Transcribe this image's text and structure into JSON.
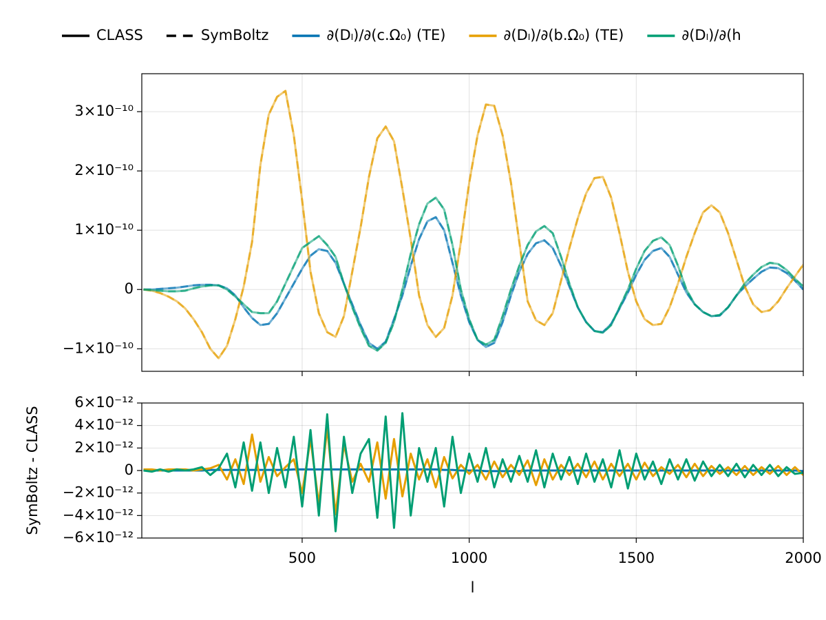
{
  "chart_data": [
    {
      "type": "line",
      "line_styles": [
        {
          "name": "CLASS",
          "dash": "solid"
        },
        {
          "name": "SymBoltz",
          "dash": "dashed"
        }
      ],
      "x": [
        25,
        50,
        75,
        100,
        125,
        150,
        175,
        200,
        225,
        250,
        275,
        300,
        325,
        350,
        375,
        400,
        425,
        450,
        475,
        500,
        525,
        550,
        575,
        600,
        625,
        650,
        675,
        700,
        725,
        750,
        775,
        800,
        825,
        850,
        875,
        900,
        925,
        950,
        975,
        1000,
        1025,
        1050,
        1075,
        1100,
        1125,
        1150,
        1175,
        1200,
        1225,
        1250,
        1275,
        1300,
        1325,
        1350,
        1375,
        1400,
        1425,
        1450,
        1475,
        1500,
        1525,
        1550,
        1575,
        1600,
        1625,
        1650,
        1675,
        1700,
        1725,
        1750,
        1775,
        1800,
        1825,
        1850,
        1875,
        1900,
        1925,
        1950,
        1975,
        2000
      ],
      "xlim": [
        20,
        2000
      ],
      "xticks": [
        500,
        1000,
        1500,
        2000
      ],
      "show_xtick_labels": false,
      "ylim": [
        -1.38e-10,
        3.64e-10
      ],
      "yticks": [
        {
          "value": -1e-10,
          "label": "−1×10⁻¹⁰"
        },
        0,
        {
          "value": 1e-10,
          "label": "1×10⁻¹⁰"
        },
        {
          "value": 2e-10,
          "label": "2×10⁻¹⁰"
        },
        {
          "value": 3e-10,
          "label": "3×10⁻¹⁰"
        }
      ],
      "grid": true,
      "series": [
        {
          "name": "∂(Dₗ)/∂(c.Ω₀) (TE)",
          "color": "#0072b2",
          "values": [
            0,
            0,
            1e-12,
            2e-12,
            3e-12,
            5e-12,
            7e-12,
            8e-12,
            8e-12,
            7e-12,
            2e-12,
            -1e-11,
            -3e-11,
            -4.8e-11,
            -6e-11,
            -5.8e-11,
            -4e-11,
            -1.5e-11,
            1e-11,
            3.5e-11,
            5.7e-11,
            6.8e-11,
            6.5e-11,
            4.5e-11,
            1e-11,
            -2.5e-11,
            -6e-11,
            -9e-11,
            -1e-10,
            -8.8e-11,
            -5e-11,
            -1e-11,
            4e-11,
            8.5e-11,
            1.15e-10,
            1.22e-10,
            1e-10,
            4.5e-11,
            -1e-11,
            -5.5e-11,
            -8.5e-11,
            -9.7e-11,
            -9e-11,
            -5.5e-11,
            -1e-11,
            3e-11,
            6e-11,
            7.8e-11,
            8.3e-11,
            7e-11,
            4e-11,
            5e-12,
            -3e-11,
            -5.5e-11,
            -7e-11,
            -7.2e-11,
            -5.8e-11,
            -3.2e-11,
            -5e-12,
            2.5e-11,
            5e-11,
            6.5e-11,
            7e-11,
            5.5e-11,
            2.5e-11,
            -5e-12,
            -2.5e-11,
            -3.8e-11,
            -4.5e-11,
            -4.4e-11,
            -3e-11,
            -1e-11,
            5e-12,
            1.8e-11,
            3e-11,
            3.7e-11,
            3.6e-11,
            2.8e-11,
            1.5e-11,
            0
          ]
        },
        {
          "name": "∂(Dₗ)/∂(b.Ω₀) (TE)",
          "color": "#e69f00",
          "values": [
            0,
            -2e-12,
            -6e-12,
            -1.2e-11,
            -2e-11,
            -3.2e-11,
            -5e-11,
            -7.2e-11,
            -1e-10,
            -1.16e-10,
            -9.5e-11,
            -5e-11,
            5e-12,
            8e-11,
            2.1e-10,
            2.95e-10,
            3.25e-10,
            3.35e-10,
            2.6e-10,
            1.5e-10,
            3e-11,
            -4e-11,
            -7.2e-11,
            -8e-11,
            -4.5e-11,
            3e-11,
            1.05e-10,
            1.9e-10,
            2.55e-10,
            2.75e-10,
            2.5e-10,
            1.7e-10,
            8.5e-11,
            -1e-11,
            -6e-11,
            -8e-11,
            -6.5e-11,
            -1e-11,
            8e-11,
            1.8e-10,
            2.6e-10,
            3.12e-10,
            3.1e-10,
            2.6e-10,
            1.8e-10,
            8e-11,
            -2e-11,
            -5.2e-11,
            -6e-11,
            -4e-11,
            1.5e-11,
            7e-11,
            1.2e-10,
            1.62e-10,
            1.88e-10,
            1.9e-10,
            1.55e-10,
            9.5e-11,
            3e-11,
            -2e-11,
            -5e-11,
            -6e-11,
            -5.8e-11,
            -3e-11,
            1e-11,
            5.5e-11,
            9.5e-11,
            1.3e-10,
            1.42e-10,
            1.3e-10,
            9.5e-11,
            5e-11,
            5e-12,
            -2.5e-11,
            -3.8e-11,
            -3.5e-11,
            -2e-11,
            2e-12,
            2.2e-11,
            4.2e-11
          ]
        },
        {
          "name": "∂(Dₗ)/∂(h",
          "color": "#009e73",
          "values": [
            0,
            -1e-12,
            -2e-12,
            -3e-12,
            -3e-12,
            -2e-12,
            2e-12,
            5e-12,
            7e-12,
            7e-12,
            0,
            -1.2e-11,
            -2.5e-11,
            -3.8e-11,
            -4e-11,
            -4e-11,
            -2e-11,
            1e-11,
            4e-11,
            7e-11,
            8e-11,
            9e-11,
            7.5e-11,
            5.5e-11,
            1e-11,
            -3e-11,
            -6.5e-11,
            -9.5e-11,
            -1.03e-10,
            -9e-11,
            -5.5e-11,
            0,
            6e-11,
            1.1e-10,
            1.45e-10,
            1.55e-10,
            1.35e-10,
            7.5e-11,
            0,
            -5e-11,
            -8.5e-11,
            -9.3e-11,
            -8.5e-11,
            -4.5e-11,
            0,
            4e-11,
            7.5e-11,
            9.8e-11,
            1.07e-10,
            9.5e-11,
            5.5e-11,
            1e-11,
            -3e-11,
            -5.5e-11,
            -7e-11,
            -7.3e-11,
            -6e-11,
            -3e-11,
            0,
            3.5e-11,
            6.5e-11,
            8.2e-11,
            8.8e-11,
            7.5e-11,
            4e-11,
            0,
            -2.5e-11,
            -3.8e-11,
            -4.5e-11,
            -4.3e-11,
            -3e-11,
            -1e-11,
            1e-11,
            2.5e-11,
            3.8e-11,
            4.5e-11,
            4.3e-11,
            3.3e-11,
            1.8e-11,
            5e-12
          ]
        }
      ]
    },
    {
      "type": "line",
      "x": [
        25,
        50,
        75,
        100,
        125,
        150,
        175,
        200,
        225,
        250,
        275,
        300,
        325,
        350,
        375,
        400,
        425,
        450,
        475,
        500,
        525,
        550,
        575,
        600,
        625,
        650,
        675,
        700,
        725,
        750,
        775,
        800,
        825,
        850,
        875,
        900,
        925,
        950,
        975,
        1000,
        1025,
        1050,
        1075,
        1100,
        1125,
        1150,
        1175,
        1200,
        1225,
        1250,
        1275,
        1300,
        1325,
        1350,
        1375,
        1400,
        1425,
        1450,
        1475,
        1500,
        1525,
        1550,
        1575,
        1600,
        1625,
        1650,
        1675,
        1700,
        1725,
        1750,
        1775,
        1800,
        1825,
        1850,
        1875,
        1900,
        1925,
        1950,
        1975,
        2000
      ],
      "xlim": [
        20,
        2000
      ],
      "xticks": [
        500,
        1000,
        1500,
        2000
      ],
      "show_xtick_labels": true,
      "xlabel": "l",
      "ylabel": "SymBoltz - CLASS",
      "ylim": [
        -6e-12,
        6e-12
      ],
      "yticks": [
        {
          "value": -6e-12,
          "label": "−6×10⁻¹²"
        },
        {
          "value": -4e-12,
          "label": "−4×10⁻¹²"
        },
        {
          "value": -2e-12,
          "label": "−2×10⁻¹²"
        },
        0,
        {
          "value": 2e-12,
          "label": "2×10⁻¹²"
        },
        {
          "value": 4e-12,
          "label": "4×10⁻¹²"
        },
        {
          "value": 6e-12,
          "label": "6×10⁻¹²"
        }
      ],
      "grid": true,
      "series": [
        {
          "name": "∂(Dₗ)/∂(c.Ω₀) (TE)",
          "color": "#0072b2",
          "values": [
            0,
            0,
            0,
            0,
            0,
            0,
            0,
            0,
            5e-14,
            5e-14,
            5e-14,
            5e-14,
            5e-14,
            5e-14,
            5e-14,
            5e-14,
            5e-14,
            5e-14,
            1e-13,
            1e-13,
            1e-13,
            1e-13,
            1e-13,
            1e-13,
            1e-13,
            1e-13,
            1e-13,
            1e-13,
            1e-13,
            1e-13,
            1e-13,
            1e-13,
            1e-13,
            1e-13,
            1e-13,
            1e-13,
            5e-14,
            5e-14,
            0,
            0,
            0,
            -5e-14,
            -5e-14,
            -5e-14,
            -5e-14,
            -5e-14,
            0,
            0,
            0,
            0,
            0,
            0,
            0,
            0,
            0,
            0,
            0,
            0,
            0,
            0,
            0,
            0,
            0,
            0,
            0,
            0,
            0,
            0,
            0,
            0,
            0,
            0,
            0,
            0,
            0,
            0,
            0,
            0,
            0,
            -5e-14
          ]
        },
        {
          "name": "∂(Dₗ)/∂(b.Ω₀) (TE)",
          "color": "#e69f00",
          "values": [
            1e-13,
            1e-13,
            0,
            1e-13,
            1e-13,
            1e-13,
            0,
            1e-13,
            2e-13,
            5e-13,
            -8e-13,
            1e-12,
            -1.2e-12,
            3.2e-12,
            -1e-12,
            1.2e-12,
            -5e-13,
            3e-13,
            1e-12,
            -2e-12,
            2.8e-12,
            -3e-12,
            3.8e-12,
            -3.9e-12,
            2.3e-12,
            -1e-12,
            6e-13,
            -1e-12,
            2.5e-12,
            -2.5e-12,
            2.8e-12,
            -2.3e-12,
            1.5e-12,
            -8e-13,
            1e-12,
            -1.5e-12,
            1.2e-12,
            -7e-13,
            5e-13,
            -3e-13,
            5e-13,
            -8e-13,
            8e-13,
            -6e-13,
            5e-13,
            -4e-13,
            9e-13,
            -1.3e-12,
            1e-12,
            -8e-13,
            5e-13,
            -4e-13,
            6e-13,
            -6e-13,
            8e-13,
            -8e-13,
            6e-13,
            -5e-13,
            6e-13,
            -8e-13,
            7e-13,
            -5e-13,
            3e-13,
            -3e-13,
            5e-13,
            -6e-13,
            6e-13,
            -5e-13,
            4e-13,
            -3e-13,
            3e-13,
            -4e-13,
            4e-13,
            -4e-13,
            3e-13,
            -3e-13,
            4e-13,
            -4e-13,
            3e-13,
            -4e-13
          ]
        },
        {
          "name": "∂(Dₗ)/∂(h",
          "color": "#009e73",
          "values": [
            0,
            -1e-13,
            1e-13,
            -1e-13,
            1e-13,
            0,
            1e-13,
            3e-13,
            -4e-13,
            2e-13,
            1.5e-12,
            -1.5e-12,
            2.5e-12,
            -1.8e-12,
            2.5e-12,
            -2e-12,
            2e-12,
            -1.5e-12,
            3e-12,
            -3.2e-12,
            3.6e-12,
            -4e-12,
            5e-12,
            -5.4e-12,
            3e-12,
            -2e-12,
            1.5e-12,
            2.8e-12,
            -4.2e-12,
            4.8e-12,
            -5.1e-12,
            5.1e-12,
            -4e-12,
            2e-12,
            -1e-12,
            2e-12,
            -3.2e-12,
            3e-12,
            -2e-12,
            1.5e-12,
            -1e-12,
            2e-12,
            -1.5e-12,
            1e-12,
            -1e-12,
            1.3e-12,
            -1e-12,
            1.8e-12,
            -1.5e-12,
            1.5e-12,
            -8e-13,
            1.2e-12,
            -1.2e-12,
            1.5e-12,
            -1e-12,
            1e-12,
            -1.5e-12,
            1.8e-12,
            -1.6e-12,
            1.5e-12,
            -8e-13,
            8e-13,
            -1.2e-12,
            1e-12,
            -8e-13,
            1e-12,
            -9e-13,
            8e-13,
            -5e-13,
            5e-13,
            -5e-13,
            6e-13,
            -6e-13,
            5e-13,
            -4e-13,
            5e-13,
            -5e-13,
            3e-13,
            -3e-13,
            -2e-13
          ]
        }
      ]
    }
  ]
}
